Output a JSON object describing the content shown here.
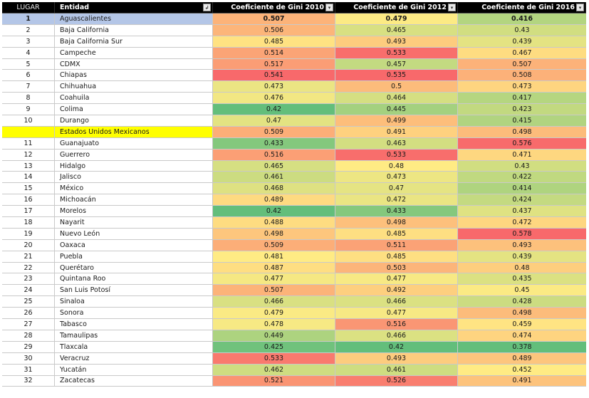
{
  "header": {
    "lugar": "LUGAR",
    "entidad": "Entidad",
    "gini_2010": "Coeficiente de Gini 2010",
    "gini_2012": "Coeficiente de Gini 2012",
    "gini_2016": "Coeficiente de Gini 2016",
    "entidad_filter_icon": "filter-icon",
    "col_filter_icon": "dropdown-icon"
  },
  "colors": {
    "header_bg": "#000000",
    "first_row_bg": "#b4c6e7",
    "national_row_bg": "#ffff00",
    "scale_low": "#63be7b",
    "scale_mid": "#ffeb84",
    "scale_high": "#f8696b"
  },
  "rows": [
    {
      "lugar": "1",
      "entidad": "Aguascalientes",
      "g2010": "0.507",
      "g2012": "0.479",
      "g2016": "0.416"
    },
    {
      "lugar": "2",
      "entidad": "Baja California",
      "g2010": "0.506",
      "g2012": "0.465",
      "g2016": "0.43"
    },
    {
      "lugar": "3",
      "entidad": "Baja California Sur",
      "g2010": "0.485",
      "g2012": "0.493",
      "g2016": "0.439"
    },
    {
      "lugar": "4",
      "entidad": "Campeche",
      "g2010": "0.514",
      "g2012": "0.533",
      "g2016": "0.467"
    },
    {
      "lugar": "5",
      "entidad": "CDMX",
      "g2010": "0.517",
      "g2012": "0.457",
      "g2016": "0.507"
    },
    {
      "lugar": "6",
      "entidad": "Chiapas",
      "g2010": "0.541",
      "g2012": "0.535",
      "g2016": "0.508"
    },
    {
      "lugar": "7",
      "entidad": "Chihuahua",
      "g2010": "0.473",
      "g2012": "0.5",
      "g2016": "0.473"
    },
    {
      "lugar": "8",
      "entidad": "Coahuila",
      "g2010": "0.476",
      "g2012": "0.464",
      "g2016": "0.417"
    },
    {
      "lugar": "9",
      "entidad": "Colima",
      "g2010": "0.42",
      "g2012": "0.445",
      "g2016": "0.423"
    },
    {
      "lugar": "10",
      "entidad": "Durango",
      "g2010": "0.47",
      "g2012": "0.499",
      "g2016": "0.415"
    },
    {
      "lugar": "",
      "entidad": "Estados Unidos Mexicanos",
      "g2010": "0.509",
      "g2012": "0.491",
      "g2016": "0.498",
      "national": true
    },
    {
      "lugar": "11",
      "entidad": "Guanajuato",
      "g2010": "0.433",
      "g2012": "0.463",
      "g2016": "0.576"
    },
    {
      "lugar": "12",
      "entidad": "Guerrero",
      "g2010": "0.516",
      "g2012": "0.533",
      "g2016": "0.471"
    },
    {
      "lugar": "13",
      "entidad": "Hidalgo",
      "g2010": "0.465",
      "g2012": "0.48",
      "g2016": "0.43"
    },
    {
      "lugar": "14",
      "entidad": "Jalisco",
      "g2010": "0.461",
      "g2012": "0.473",
      "g2016": "0.422"
    },
    {
      "lugar": "15",
      "entidad": "México",
      "g2010": "0.468",
      "g2012": "0.47",
      "g2016": "0.414"
    },
    {
      "lugar": "16",
      "entidad": "Michoacán",
      "g2010": "0.489",
      "g2012": "0.472",
      "g2016": "0.424"
    },
    {
      "lugar": "17",
      "entidad": "Morelos",
      "g2010": "0.42",
      "g2012": "0.433",
      "g2016": "0.437"
    },
    {
      "lugar": "18",
      "entidad": "Nayarit",
      "g2010": "0.488",
      "g2012": "0.498",
      "g2016": "0.472"
    },
    {
      "lugar": "19",
      "entidad": "Nuevo León",
      "g2010": "0.498",
      "g2012": "0.485",
      "g2016": "0.578"
    },
    {
      "lugar": "20",
      "entidad": "Oaxaca",
      "g2010": "0.509",
      "g2012": "0.511",
      "g2016": "0.493"
    },
    {
      "lugar": "21",
      "entidad": "Puebla",
      "g2010": "0.481",
      "g2012": "0.485",
      "g2016": "0.439"
    },
    {
      "lugar": "22",
      "entidad": "Querétaro",
      "g2010": "0.487",
      "g2012": "0.503",
      "g2016": "0.48"
    },
    {
      "lugar": "23",
      "entidad": "Quintana Roo",
      "g2010": "0.477",
      "g2012": "0.477",
      "g2016": "0.435"
    },
    {
      "lugar": "24",
      "entidad": "San Luis Potosí",
      "g2010": "0.507",
      "g2012": "0.492",
      "g2016": "0.45"
    },
    {
      "lugar": "25",
      "entidad": "Sinaloa",
      "g2010": "0.466",
      "g2012": "0.466",
      "g2016": "0.428"
    },
    {
      "lugar": "26",
      "entidad": "Sonora",
      "g2010": "0.479",
      "g2012": "0.477",
      "g2016": "0.498"
    },
    {
      "lugar": "27",
      "entidad": "Tabasco",
      "g2010": "0.478",
      "g2012": "0.516",
      "g2016": "0.459"
    },
    {
      "lugar": "28",
      "entidad": "Tamaulipas",
      "g2010": "0.449",
      "g2012": "0.466",
      "g2016": "0.474"
    },
    {
      "lugar": "29",
      "entidad": "Tlaxcala",
      "g2010": "0.425",
      "g2012": "0.42",
      "g2016": "0.378"
    },
    {
      "lugar": "30",
      "entidad": "Veracruz",
      "g2010": "0.533",
      "g2012": "0.493",
      "g2016": "0.489"
    },
    {
      "lugar": "31",
      "entidad": "Yucatán",
      "g2010": "0.462",
      "g2012": "0.461",
      "g2016": "0.452"
    },
    {
      "lugar": "32",
      "entidad": "Zacatecas",
      "g2010": "0.521",
      "g2012": "0.526",
      "g2016": "0.491"
    }
  ]
}
